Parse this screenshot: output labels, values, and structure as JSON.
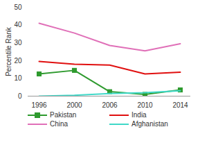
{
  "chart_data": {
    "type": "line",
    "y_label": "Percentile Rank",
    "categories": [
      "1996",
      "2000",
      "2006",
      "2010",
      "2014"
    ],
    "series": [
      {
        "name": "Pakistan",
        "color": "#2e9a2e",
        "marker": "square",
        "values": [
          12.5,
          14.5,
          2.5,
          1,
          3.5
        ]
      },
      {
        "name": "India",
        "color": "#e01010",
        "values": [
          19.5,
          18,
          17.5,
          12.5,
          13.5
        ]
      },
      {
        "name": "China",
        "color": "#e070b8",
        "values": [
          41,
          35.5,
          28.5,
          25.5,
          29.5
        ]
      },
      {
        "name": "Afghanistan",
        "color": "#40d8c8",
        "values": [
          0,
          0.5,
          1.5,
          2,
          3
        ]
      }
    ],
    "ylim": [
      0,
      50
    ],
    "yticks": [
      0,
      10,
      20,
      30,
      40,
      50
    ],
    "grid": false,
    "legend": "bottom"
  }
}
